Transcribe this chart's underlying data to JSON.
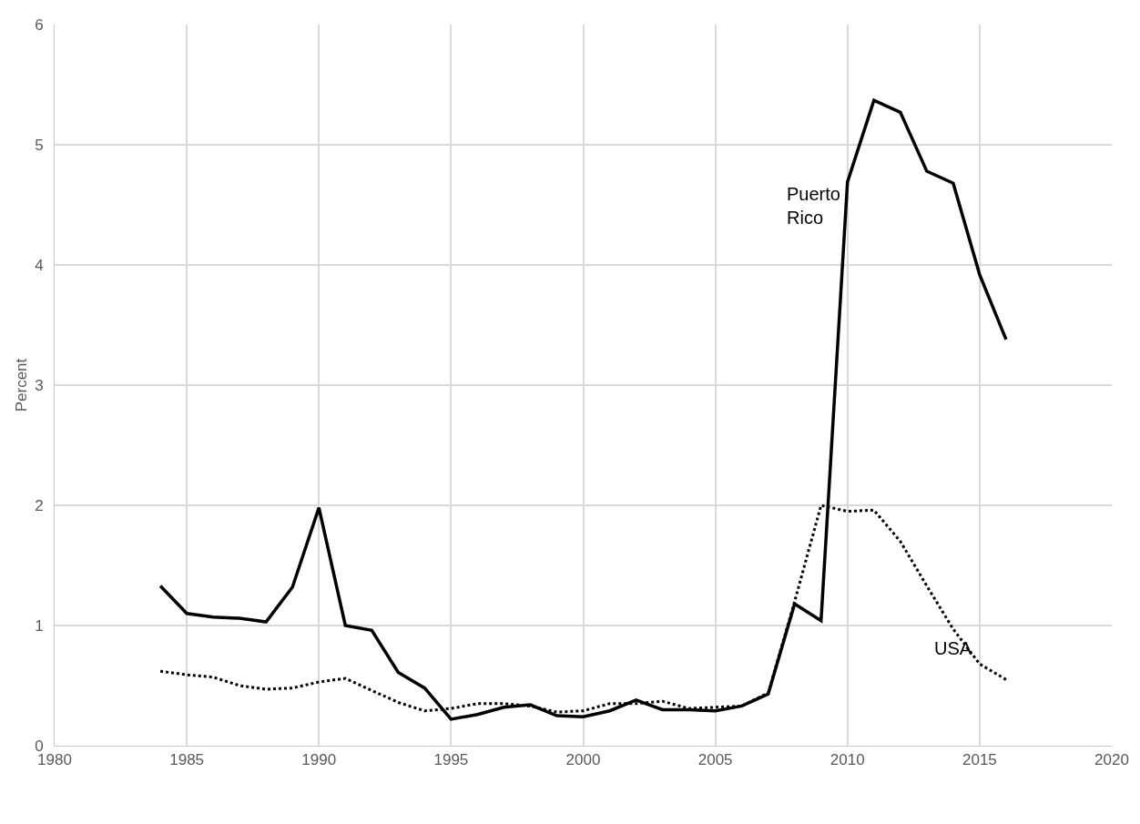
{
  "chart_data": {
    "type": "line",
    "ylabel": "Percent",
    "x": [
      1984,
      1985,
      1986,
      1987,
      1988,
      1989,
      1990,
      1991,
      1992,
      1993,
      1994,
      1995,
      1996,
      1997,
      1998,
      1999,
      2000,
      2001,
      2002,
      2003,
      2004,
      2005,
      2006,
      2007,
      2008,
      2009,
      2010,
      2011,
      2012,
      2013,
      2014,
      2015,
      2016
    ],
    "series": [
      {
        "name": "Puerto Rico",
        "color": "#000000",
        "line_style": "solid",
        "values": [
          1.33,
          1.1,
          1.07,
          1.06,
          1.03,
          1.32,
          1.98,
          1.0,
          0.96,
          0.61,
          0.48,
          0.22,
          0.26,
          0.32,
          0.34,
          0.25,
          0.24,
          0.29,
          0.38,
          0.3,
          0.3,
          0.29,
          0.33,
          0.43,
          1.18,
          1.04,
          4.69,
          5.37,
          5.27,
          4.78,
          4.68,
          3.92,
          3.38
        ]
      },
      {
        "name": "USA",
        "color": "#000000",
        "line_style": "dotted",
        "values": [
          0.62,
          0.59,
          0.57,
          0.5,
          0.47,
          0.48,
          0.53,
          0.56,
          0.46,
          0.36,
          0.29,
          0.31,
          0.35,
          0.35,
          0.33,
          0.28,
          0.29,
          0.35,
          0.35,
          0.37,
          0.31,
          0.32,
          0.33,
          0.44,
          1.2,
          2.0,
          1.95,
          1.96,
          1.7,
          1.33,
          0.97,
          0.68,
          0.55
        ]
      }
    ],
    "xlim": [
      1980,
      2020
    ],
    "xticks": [
      1980,
      1985,
      1990,
      1995,
      2000,
      2005,
      2010,
      2015,
      2020
    ],
    "ylim": [
      0,
      6
    ],
    "yticks": [
      0,
      1,
      2,
      3,
      4,
      5,
      6
    ],
    "grid": true,
    "legend": false,
    "marker": "none"
  }
}
